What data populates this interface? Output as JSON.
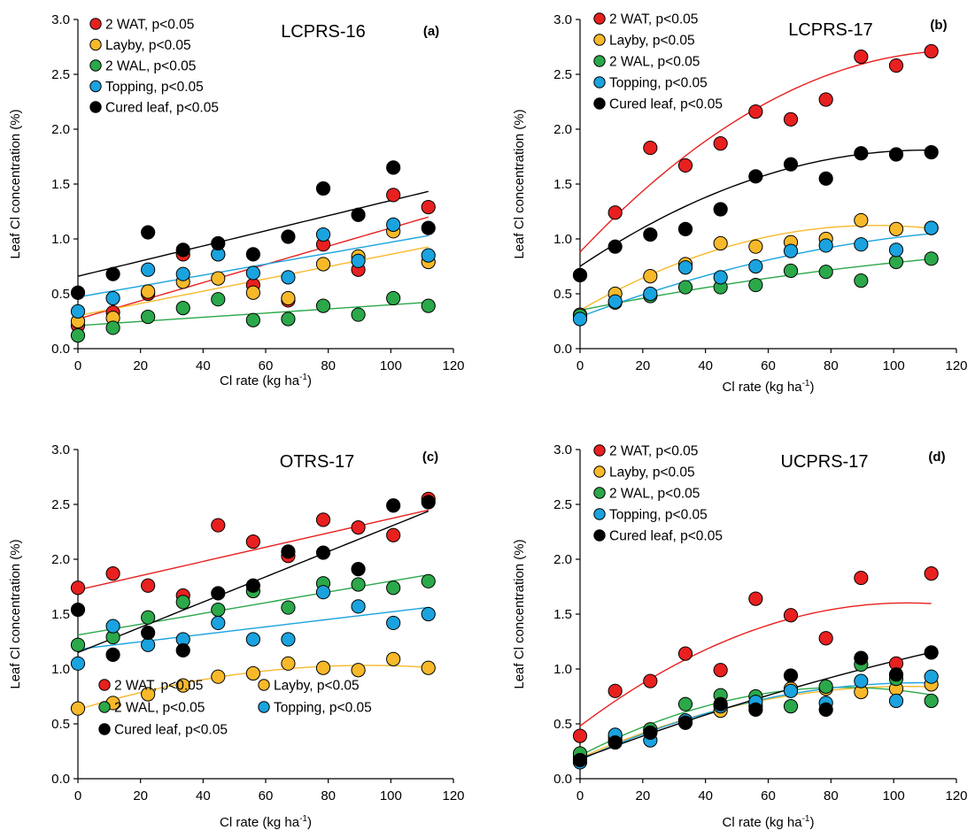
{
  "chart_data": [
    {
      "type": "scatter",
      "title": "LCPRS-16",
      "panel_label": "(a)",
      "xlabel": "Cl rate (kg ha",
      "xlabel_sup": "-1",
      "xlabel_close": ")",
      "ylabel": "Leaf Cl concentration (%)",
      "xlim": [
        0,
        120
      ],
      "ylim": [
        0,
        3.0
      ],
      "x_ticks": [
        "0",
        "20",
        "40",
        "60",
        "80",
        "100",
        "120"
      ],
      "y_ticks": [
        "0.0",
        "0.5",
        "1.0",
        "1.5",
        "2.0",
        "2.5",
        "3.0"
      ],
      "legend_position": "top-left",
      "x": [
        0,
        11.2,
        22.4,
        33.6,
        44.8,
        56,
        67.2,
        78.4,
        89.6,
        100.8,
        112
      ],
      "series": [
        {
          "name": "2 WAT, p<0.05",
          "color": "#e8201f",
          "values": [
            0.21,
            0.33,
            0.5,
            0.86,
            0.86,
            0.58,
            0.44,
            0.95,
            0.72,
            1.4,
            1.29
          ],
          "fit": [
            0.27,
            0.0083,
            0
          ]
        },
        {
          "name": "Layby, p<0.05",
          "color": "#f7b92a",
          "values": [
            0.25,
            0.28,
            0.52,
            0.61,
            0.64,
            0.51,
            0.46,
            0.77,
            0.84,
            1.07,
            0.79
          ],
          "fit": [
            0.3,
            0.0056,
            0
          ]
        },
        {
          "name": "2 WAL, p<0.05",
          "color": "#2ba84a",
          "values": [
            0.12,
            0.19,
            0.29,
            0.37,
            0.45,
            0.26,
            0.27,
            0.39,
            0.31,
            0.46,
            0.39
          ],
          "fit": [
            0.21,
            0.0019,
            0
          ]
        },
        {
          "name": "Topping, p<0.05",
          "color": "#1aa3df",
          "values": [
            0.34,
            0.46,
            0.72,
            0.68,
            0.86,
            0.69,
            0.65,
            1.04,
            0.8,
            1.13,
            0.85
          ],
          "fit": [
            0.47,
            0.005,
            0
          ]
        },
        {
          "name": "Cured leaf, p<0.05",
          "color": "#000000",
          "values": [
            0.51,
            0.68,
            1.06,
            0.9,
            0.96,
            0.86,
            1.02,
            1.46,
            1.22,
            1.65,
            1.1
          ],
          "fit": [
            0.66,
            0.0069,
            0
          ]
        }
      ]
    },
    {
      "type": "scatter",
      "title": "LCPRS-17",
      "panel_label": "(b)",
      "xlabel": "Cl rate (kg ha",
      "xlabel_sup": "-1",
      "xlabel_close": ")",
      "ylabel": "Leaf Cl concentration (%)",
      "xlim": [
        0,
        120
      ],
      "ylim": [
        0,
        3.0
      ],
      "x_ticks": [
        "0",
        "20",
        "40",
        "60",
        "80",
        "100",
        "120"
      ],
      "y_ticks": [
        "0.0",
        "0.5",
        "1.0",
        "1.5",
        "2.0",
        "2.5",
        "3.0"
      ],
      "legend_position": "top-left",
      "x": [
        0,
        11.2,
        22.4,
        33.6,
        44.8,
        56,
        67.2,
        78.4,
        89.6,
        100.8,
        112
      ],
      "series": [
        {
          "name": "2 WAT, p<0.05",
          "color": "#e8201f",
          "values": [
            0.67,
            1.24,
            1.83,
            1.67,
            1.87,
            2.16,
            2.09,
            2.27,
            2.66,
            2.58,
            2.71
          ],
          "fit": [
            0.88,
            0.0303,
            -0.000125
          ]
        },
        {
          "name": "Layby, p<0.05",
          "color": "#f7b92a",
          "values": [
            0.31,
            0.5,
            0.66,
            0.77,
            0.96,
            0.93,
            0.97,
            1.0,
            1.17,
            1.09,
            1.1
          ],
          "fit": [
            0.35,
            0.0164,
            -8.7e-05
          ]
        },
        {
          "name": "2 WAL, p<0.05",
          "color": "#2ba84a",
          "values": [
            0.3,
            0.42,
            0.48,
            0.56,
            0.56,
            0.58,
            0.71,
            0.7,
            0.62,
            0.79,
            0.82
          ],
          "fit": [
            0.35,
            0.0057,
            -1.37e-05
          ]
        },
        {
          "name": "Topping, p<0.05",
          "color": "#1aa3df",
          "values": [
            0.27,
            0.43,
            0.5,
            0.74,
            0.65,
            0.75,
            0.89,
            0.94,
            0.95,
            0.9,
            1.1
          ],
          "fit": [
            0.29,
            0.0108,
            -3.6e-05
          ]
        },
        {
          "name": "Cured leaf, p<0.05",
          "color": "#000000",
          "values": [
            0.67,
            0.93,
            1.04,
            1.09,
            1.27,
            1.57,
            1.68,
            1.55,
            1.78,
            1.77,
            1.79
          ],
          "fit": [
            0.75,
            0.0192,
            -8.7e-05
          ]
        }
      ]
    },
    {
      "type": "scatter",
      "title": "OTRS-17",
      "panel_label": "(c)",
      "xlabel": "Cl rate (kg ha",
      "xlabel_sup": "-1",
      "xlabel_close": ")",
      "ylabel": "Leaf Cl concentration (%)",
      "xlim": [
        0,
        120
      ],
      "ylim": [
        0,
        3.0
      ],
      "x_ticks": [
        "0",
        "20",
        "40",
        "60",
        "80",
        "100",
        "120"
      ],
      "y_ticks": [
        "0.0",
        "0.5",
        "1.0",
        "1.5",
        "2.0",
        "2.5",
        "3.0"
      ],
      "legend_position": "bottom-left",
      "x": [
        0,
        11.2,
        22.4,
        33.6,
        44.8,
        56,
        67.2,
        78.4,
        89.6,
        100.8,
        112
      ],
      "series": [
        {
          "name": "2 WAT, p<0.05",
          "color": "#e8201f",
          "values": [
            1.74,
            1.87,
            1.76,
            1.67,
            2.31,
            2.16,
            2.03,
            2.36,
            2.29,
            2.22,
            2.55
          ],
          "fit": [
            1.72,
            0.0065,
            0
          ]
        },
        {
          "name": "Layby, p<0.05",
          "color": "#f7b92a",
          "values": [
            0.64,
            0.69,
            0.77,
            0.85,
            0.93,
            0.96,
            1.05,
            1.01,
            0.99,
            1.09,
            1.01
          ],
          "fit": [
            0.63,
            0.0087,
            -4.7e-05
          ]
        },
        {
          "name": "2 WAL, p<0.05",
          "color": "#2ba84a",
          "values": [
            1.22,
            1.29,
            1.47,
            1.61,
            1.54,
            1.71,
            1.56,
            1.78,
            1.77,
            1.74,
            1.8
          ],
          "fit": [
            1.31,
            0.0049,
            0
          ]
        },
        {
          "name": "Topping, p<0.05",
          "color": "#1aa3df",
          "values": [
            1.05,
            1.39,
            1.22,
            1.27,
            1.42,
            1.27,
            1.27,
            1.7,
            1.57,
            1.42,
            1.5
          ],
          "fit": [
            1.18,
            0.0034,
            0
          ]
        },
        {
          "name": "Cured leaf, p<0.05",
          "color": "#000000",
          "values": [
            1.54,
            1.13,
            1.33,
            1.17,
            1.69,
            1.76,
            2.07,
            2.06,
            1.91,
            2.49,
            2.52
          ],
          "fit": [
            1.15,
            0.0115,
            0
          ]
        }
      ]
    },
    {
      "type": "scatter",
      "title": "UCPRS-17",
      "panel_label": "(d)",
      "xlabel": "Cl rate (kg ha",
      "xlabel_sup": "-1",
      "xlabel_close": ")",
      "ylabel": "Leaf Cl concentration (%)",
      "xlim": [
        0,
        120
      ],
      "ylim": [
        0,
        3.0
      ],
      "x_ticks": [
        "0",
        "20",
        "40",
        "60",
        "80",
        "100",
        "120"
      ],
      "y_ticks": [
        "0.0",
        "0.5",
        "1.0",
        "1.5",
        "2.0",
        "2.5",
        "3.0"
      ],
      "legend_position": "top-left",
      "x": [
        0,
        11.2,
        22.4,
        33.6,
        44.8,
        56,
        67.2,
        78.4,
        89.6,
        100.8,
        112
      ],
      "series": [
        {
          "name": "2 WAT, p<0.05",
          "color": "#e8201f",
          "values": [
            0.39,
            0.8,
            0.89,
            1.14,
            0.99,
            1.64,
            1.49,
            1.28,
            1.83,
            1.05,
            1.87
          ],
          "fit": [
            0.48,
            0.0215,
            -0.000103
          ]
        },
        {
          "name": "Layby, p<0.05",
          "color": "#f7b92a",
          "values": [
            0.2,
            0.35,
            0.43,
            0.53,
            0.62,
            0.66,
            0.82,
            0.82,
            0.79,
            0.82,
            0.86
          ],
          "fit": [
            0.19,
            0.0125,
            -6e-05
          ]
        },
        {
          "name": "2 WAL, p<0.05",
          "color": "#2ba84a",
          "values": [
            0.23,
            0.38,
            0.45,
            0.68,
            0.76,
            0.75,
            0.66,
            0.84,
            1.04,
            0.91,
            0.71
          ],
          "fit": [
            0.21,
            0.0148,
            -8.8e-05
          ]
        },
        {
          "name": "Topping, p<0.05",
          "color": "#1aa3df",
          "values": [
            0.15,
            0.4,
            0.35,
            0.53,
            0.66,
            0.7,
            0.8,
            0.69,
            0.89,
            0.71,
            0.93
          ],
          "fit": [
            0.17,
            0.013,
            -6e-05
          ]
        },
        {
          "name": "Cured leaf, p<0.05",
          "color": "#000000",
          "values": [
            0.17,
            0.33,
            0.42,
            0.51,
            0.68,
            0.63,
            0.94,
            0.63,
            1.1,
            0.95,
            1.15
          ],
          "fit": [
            0.18,
            0.0108,
            -1.9e-05
          ]
        }
      ]
    }
  ]
}
